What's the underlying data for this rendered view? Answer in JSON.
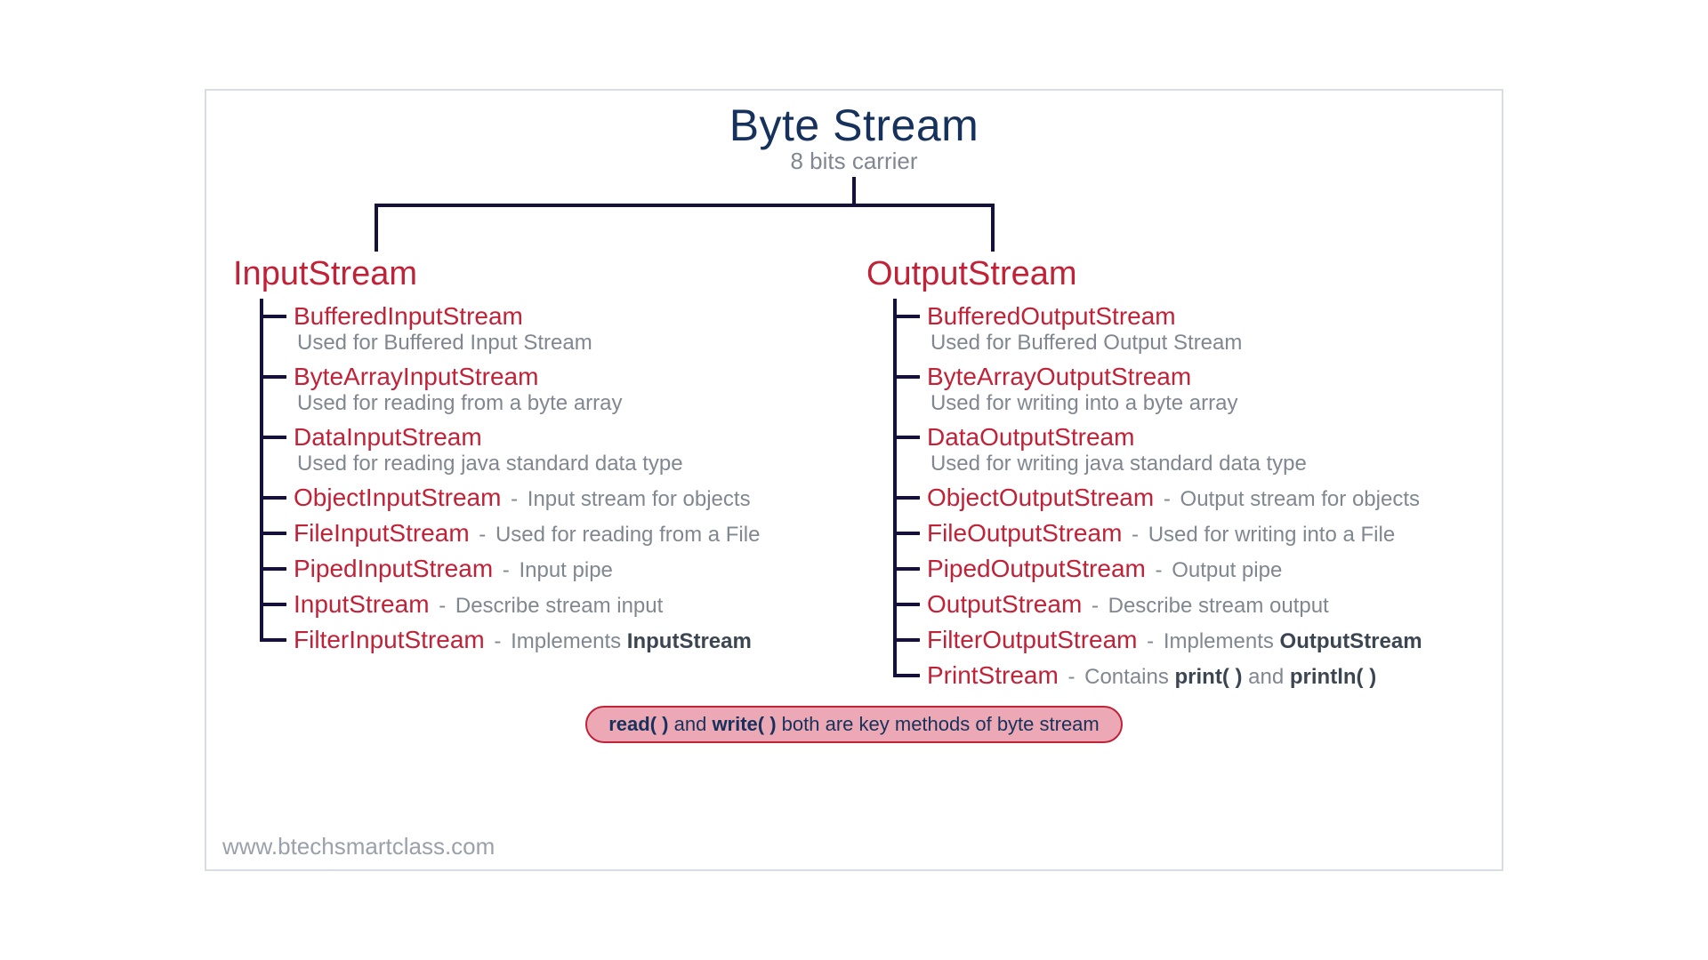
{
  "colors": {
    "title": "#16325c",
    "subtitle": "#808790",
    "line": "#14123a",
    "class_name": "#c02238",
    "desc": "#808790",
    "bold_dark": "#3c4652",
    "pill_bg": "#eca8b5",
    "pill_border": "#c02238",
    "pill_text": "#16325c",
    "watermark": "#9aa1aa",
    "frame_border": "#d8dde3"
  },
  "layout": {
    "left_drop_pct": 11.5,
    "right_drop_pct": 61.0
  },
  "title": "Byte Stream",
  "subtitle": "8 bits carrier",
  "left": {
    "heading": "InputStream",
    "items": [
      {
        "name": "BufferedInputStream",
        "desc": "Used for Buffered Input Stream",
        "inline": false
      },
      {
        "name": "ByteArrayInputStream",
        "desc": "Used for reading from a byte array",
        "inline": false
      },
      {
        "name": "DataInputStream",
        "desc": "Used for reading java standard data type",
        "inline": false
      },
      {
        "name": "ObjectInputStream",
        "desc": "Input stream for objects",
        "inline": true
      },
      {
        "name": "FileInputStream",
        "desc": "Used for reading from a File",
        "inline": true
      },
      {
        "name": "PipedInputStream",
        "desc": "Input pipe",
        "inline": true
      },
      {
        "name": "InputStream",
        "desc": "Describe stream input",
        "inline": true
      },
      {
        "name": "FilterInputStream",
        "desc": "Implements ",
        "inline": true,
        "bold_suffix": "InputStream"
      }
    ]
  },
  "right": {
    "heading": "OutputStream",
    "items": [
      {
        "name": "BufferedOutputStream",
        "desc": "Used for Buffered Output Stream",
        "inline": false
      },
      {
        "name": "ByteArrayOutputStream",
        "desc": "Used for writing into a byte array",
        "inline": false
      },
      {
        "name": "DataOutputStream",
        "desc": "Used for writing java standard data type",
        "inline": false
      },
      {
        "name": "ObjectOutputStream",
        "desc": "Output stream for objects",
        "inline": true
      },
      {
        "name": "FileOutputStream",
        "desc": "Used for writing into a File",
        "inline": true
      },
      {
        "name": "PipedOutputStream",
        "desc": "Output pipe",
        "inline": true
      },
      {
        "name": "OutputStream",
        "desc": "Describe stream output",
        "inline": true
      },
      {
        "name": "FilterOutputStream",
        "desc": "Implements ",
        "inline": true,
        "bold_suffix": "OutputStream"
      },
      {
        "name": "PrintStream",
        "desc": "Contains ",
        "inline": true,
        "bold_suffix": "print( )",
        "mid": " and ",
        "bold_suffix2": "println( )"
      }
    ]
  },
  "footnote": {
    "m1": "read( )",
    "t1": " and ",
    "m2": "write( )",
    "t2": " both are key methods of byte stream"
  },
  "watermark": "www.btechsmartclass.com"
}
